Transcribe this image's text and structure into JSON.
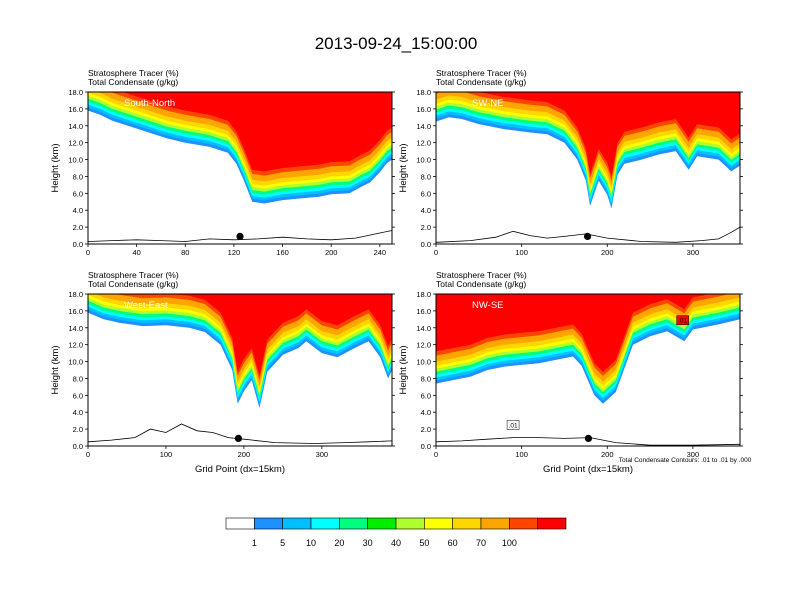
{
  "title": "2013-09-24_15:00:00",
  "figure_note": "Total Condensate Contours: .01 to .01 by .000",
  "colorbar": {
    "colors": [
      "#ffffff",
      "#1e90ff",
      "#00bfff",
      "#00ffff",
      "#00ff7f",
      "#00ee00",
      "#adff2f",
      "#ffff00",
      "#ffd700",
      "#ffa500",
      "#ff4500",
      "#ff0000"
    ],
    "labels": [
      "1",
      "5",
      "10",
      "20",
      "30",
      "40",
      "50",
      "60",
      "70",
      "100"
    ]
  },
  "chart_data": [
    {
      "type": "area",
      "id": "south-north",
      "header": [
        "Stratosphere Tracer   (%)",
        "Total Condensate   (g/kg)"
      ],
      "label": "South-North",
      "xlabel": "",
      "ylabel": "Height (km)",
      "xlim": [
        0,
        250
      ],
      "ylim": [
        0,
        18
      ],
      "xticks": [
        0,
        40,
        80,
        120,
        160,
        200,
        240
      ],
      "yticks": [
        "0.0",
        "2.0",
        "4.0",
        "6.0",
        "8.0",
        "10.0",
        "12.0",
        "14.0",
        "16.0",
        "18.0"
      ],
      "marker_x": 125,
      "tracer_base_km": [
        [
          0,
          15.8
        ],
        [
          10,
          15.3
        ],
        [
          20,
          14.6
        ],
        [
          35,
          13.9
        ],
        [
          50,
          13.2
        ],
        [
          65,
          12.5
        ],
        [
          80,
          12.0
        ],
        [
          100,
          11.5
        ],
        [
          115,
          10.8
        ],
        [
          122,
          9.5
        ],
        [
          128,
          7.6
        ],
        [
          135,
          5.0
        ],
        [
          145,
          4.8
        ],
        [
          160,
          5.2
        ],
        [
          175,
          5.4
        ],
        [
          190,
          5.6
        ],
        [
          200,
          5.9
        ],
        [
          215,
          6.0
        ],
        [
          225,
          6.8
        ],
        [
          232,
          7.3
        ],
        [
          240,
          8.5
        ],
        [
          246,
          9.6
        ],
        [
          250,
          10.0
        ]
      ],
      "terrain_km": [
        [
          0,
          0.3
        ],
        [
          20,
          0.4
        ],
        [
          40,
          0.5
        ],
        [
          60,
          0.4
        ],
        [
          80,
          0.3
        ],
        [
          100,
          0.6
        ],
        [
          120,
          0.5
        ],
        [
          140,
          0.6
        ],
        [
          160,
          0.8
        ],
        [
          180,
          0.6
        ],
        [
          200,
          0.5
        ],
        [
          220,
          0.7
        ],
        [
          240,
          1.3
        ],
        [
          250,
          1.6
        ]
      ]
    },
    {
      "type": "area",
      "id": "sw-ne",
      "header": [
        "Stratosphere Tracer   (%)",
        "Total Condensate   (g/kg)"
      ],
      "label": "SW-NE",
      "xlabel": "",
      "ylabel": "Height (km)",
      "xlim": [
        0,
        355
      ],
      "ylim": [
        0,
        18
      ],
      "xticks": [
        0,
        100,
        200,
        300
      ],
      "yticks": [
        "0.0",
        "2.0",
        "4.0",
        "6.0",
        "8.0",
        "10.0",
        "12.0",
        "14.0",
        "16.0",
        "18.0"
      ],
      "marker_x": 177,
      "tracer_base_km": [
        [
          0,
          14.5
        ],
        [
          15,
          15.0
        ],
        [
          30,
          14.8
        ],
        [
          50,
          14.2
        ],
        [
          80,
          13.6
        ],
        [
          110,
          13.2
        ],
        [
          130,
          13.0
        ],
        [
          150,
          12.0
        ],
        [
          165,
          10.0
        ],
        [
          175,
          7.5
        ],
        [
          180,
          4.5
        ],
        [
          185,
          6.0
        ],
        [
          190,
          7.5
        ],
        [
          200,
          5.8
        ],
        [
          205,
          4.2
        ],
        [
          212,
          8.2
        ],
        [
          220,
          9.5
        ],
        [
          240,
          10.0
        ],
        [
          260,
          10.6
        ],
        [
          280,
          11.0
        ],
        [
          295,
          8.8
        ],
        [
          305,
          10.4
        ],
        [
          330,
          10.0
        ],
        [
          345,
          8.6
        ],
        [
          355,
          9.3
        ]
      ],
      "terrain_km": [
        [
          0,
          0.2
        ],
        [
          40,
          0.4
        ],
        [
          70,
          0.8
        ],
        [
          90,
          1.5
        ],
        [
          110,
          1.0
        ],
        [
          130,
          0.7
        ],
        [
          150,
          0.9
        ],
        [
          175,
          1.2
        ],
        [
          200,
          0.7
        ],
        [
          240,
          0.3
        ],
        [
          280,
          0.2
        ],
        [
          310,
          0.4
        ],
        [
          330,
          0.6
        ],
        [
          345,
          1.4
        ],
        [
          355,
          2.0
        ]
      ]
    },
    {
      "type": "area",
      "id": "west-east",
      "header": [
        "Stratosphere Tracer   (%)",
        "Total Condensate   (g/kg)"
      ],
      "label": "West-East",
      "xlabel": "Grid Point (dx=15km)",
      "ylabel": "Height (km)",
      "xlim": [
        0,
        390
      ],
      "ylim": [
        0,
        18
      ],
      "xticks": [
        0,
        100,
        200,
        300
      ],
      "yticks": [
        "0.0",
        "2.0",
        "4.0",
        "6.0",
        "8.0",
        "10.0",
        "12.0",
        "14.0",
        "16.0",
        "18.0"
      ],
      "marker_x": 193,
      "tracer_base_km": [
        [
          0,
          15.8
        ],
        [
          20,
          15.0
        ],
        [
          40,
          14.6
        ],
        [
          70,
          14.2
        ],
        [
          100,
          14.3
        ],
        [
          130,
          14.0
        ],
        [
          150,
          13.5
        ],
        [
          170,
          12.0
        ],
        [
          185,
          9.0
        ],
        [
          192,
          5.0
        ],
        [
          200,
          6.5
        ],
        [
          210,
          7.8
        ],
        [
          220,
          4.5
        ],
        [
          230,
          8.8
        ],
        [
          250,
          10.8
        ],
        [
          270,
          11.6
        ],
        [
          280,
          12.4
        ],
        [
          300,
          11.0
        ],
        [
          320,
          10.5
        ],
        [
          340,
          11.5
        ],
        [
          360,
          12.4
        ],
        [
          375,
          10.5
        ],
        [
          385,
          8.0
        ],
        [
          390,
          9.0
        ]
      ],
      "terrain_km": [
        [
          0,
          0.5
        ],
        [
          30,
          0.7
        ],
        [
          60,
          1.0
        ],
        [
          80,
          2.0
        ],
        [
          100,
          1.6
        ],
        [
          120,
          2.6
        ],
        [
          140,
          1.8
        ],
        [
          160,
          1.6
        ],
        [
          180,
          1.0
        ],
        [
          200,
          0.8
        ],
        [
          240,
          0.4
        ],
        [
          290,
          0.3
        ],
        [
          330,
          0.4
        ],
        [
          360,
          0.5
        ],
        [
          390,
          0.6
        ]
      ]
    },
    {
      "type": "area",
      "id": "nw-se",
      "header": [
        "Stratosphere Tracer   (%)",
        "Total Condensate   (g/kg)"
      ],
      "label": "NW-SE",
      "xlabel": "Grid Point (dx=15km)",
      "ylabel": "Height (km)",
      "xlim": [
        0,
        355
      ],
      "ylim": [
        0,
        18
      ],
      "xticks": [
        0,
        100,
        200,
        300
      ],
      "yticks": [
        "0.0",
        "2.0",
        "4.0",
        "6.0",
        "8.0",
        "10.0",
        "12.0",
        "14.0",
        "16.0",
        "18.0"
      ],
      "marker_x": 178,
      "contour_labels": [
        ".01",
        ".01"
      ],
      "tracer_base_km": [
        [
          0,
          7.4
        ],
        [
          20,
          7.8
        ],
        [
          40,
          8.2
        ],
        [
          60,
          9.0
        ],
        [
          80,
          9.4
        ],
        [
          100,
          9.6
        ],
        [
          120,
          9.8
        ],
        [
          140,
          10.2
        ],
        [
          160,
          10.6
        ],
        [
          170,
          9.5
        ],
        [
          185,
          6.0
        ],
        [
          195,
          5.0
        ],
        [
          210,
          6.4
        ],
        [
          230,
          12.0
        ],
        [
          250,
          13.0
        ],
        [
          270,
          13.6
        ],
        [
          290,
          12.4
        ],
        [
          300,
          13.8
        ],
        [
          330,
          14.4
        ],
        [
          355,
          15.0
        ]
      ],
      "terrain_km": [
        [
          0,
          0.5
        ],
        [
          30,
          0.6
        ],
        [
          60,
          0.8
        ],
        [
          90,
          1.0
        ],
        [
          120,
          1.0
        ],
        [
          150,
          0.9
        ],
        [
          180,
          1.0
        ],
        [
          210,
          0.4
        ],
        [
          250,
          0.1
        ],
        [
          300,
          0.1
        ],
        [
          355,
          0.2
        ]
      ]
    }
  ]
}
